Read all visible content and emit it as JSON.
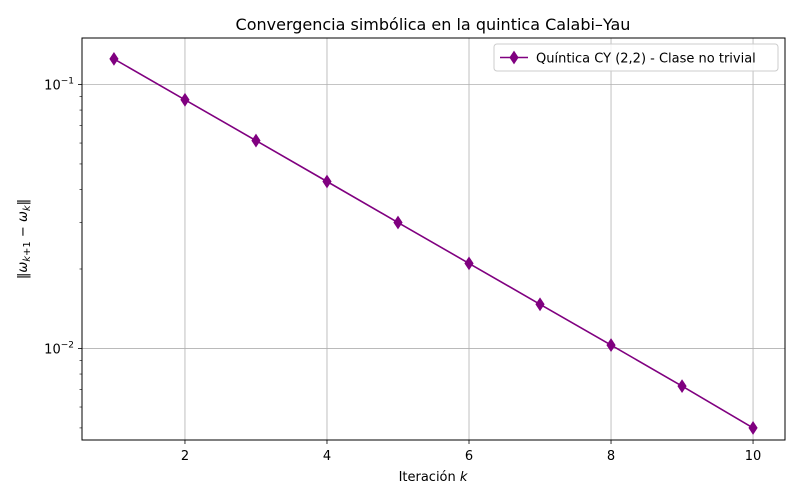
{
  "chart_data": {
    "type": "line",
    "title": "Convergencia simbólica en la quintica Calabi–Yau",
    "xlabel": "Iteración k",
    "ylabel": "‖ω_{k+1} − ω_k‖",
    "y_scale": "log",
    "xlim": [
      0.55,
      10.45
    ],
    "ylim": [
      0.0045,
      0.15
    ],
    "grid": true,
    "legend_placement": "top-right",
    "x_ticks": [
      2,
      4,
      6,
      8,
      10
    ],
    "y_ticks": [
      0.01,
      0.1
    ],
    "series": [
      {
        "name": "Quíntica CY (2,2) - Clase no trivial",
        "color": "#800080",
        "marker": "thin-diamond",
        "x": [
          1,
          2,
          3,
          4,
          5,
          6,
          7,
          8,
          9,
          10
        ],
        "y": [
          0.125,
          0.0875,
          0.0613,
          0.0429,
          0.03,
          0.021,
          0.0147,
          0.0103,
          0.0072,
          0.005
        ]
      }
    ]
  }
}
